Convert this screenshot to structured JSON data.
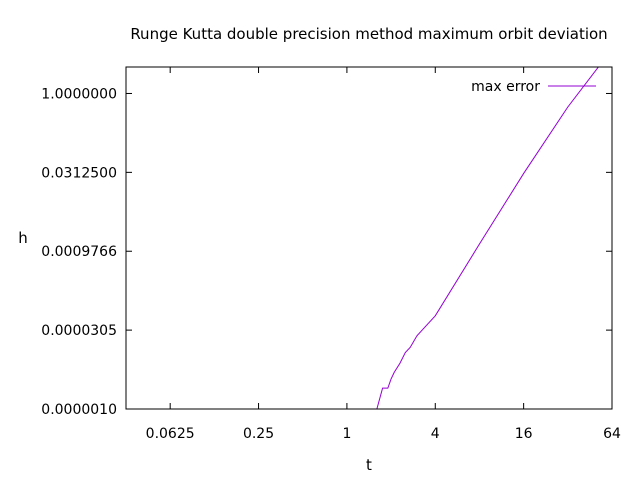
{
  "chart_data": {
    "type": "line",
    "title": "Runge Kutta double precision method maximum orbit deviation",
    "xlabel": "t",
    "ylabel": "h",
    "x_scale": "log2",
    "y_scale": "log2",
    "xlim": [
      0.03125,
      64
    ],
    "ylim": [
      9.5367431640625e-07,
      3.2
    ],
    "x_ticks": [
      0.0625,
      0.25,
      1,
      4,
      16,
      64
    ],
    "x_tick_labels": [
      "0.0625",
      "0.25",
      "1",
      "4",
      "16",
      "64"
    ],
    "y_ticks": [
      9.5367431640625e-07,
      3.0517578125e-05,
      0.0009765625,
      0.03125,
      1.0
    ],
    "y_tick_labels": [
      "0.0000010",
      "0.0000305",
      "0.0009766",
      "0.0312500",
      "1.0000000"
    ],
    "grid": false,
    "legend_position": "top-right",
    "series": [
      {
        "name": "max error",
        "color": "#9400d3",
        "x": [
          1.05,
          1.6,
          1.75,
          1.9,
          2.0,
          2.1,
          2.3,
          2.5,
          2.7,
          3.0,
          3.5,
          4.0,
          8.0,
          16.0,
          32.0,
          64.0
        ],
        "y": [
          9.5367431640625e-07,
          9.5367431640625e-07,
          2.38e-06,
          2.38e-06,
          3.58e-06,
          4.77e-06,
          7.15e-06,
          1.14e-05,
          1.43e-05,
          2.38e-05,
          3.81e-05,
          5.72e-05,
          0.00134,
          0.0298,
          0.552,
          7.0
        ]
      }
    ]
  }
}
